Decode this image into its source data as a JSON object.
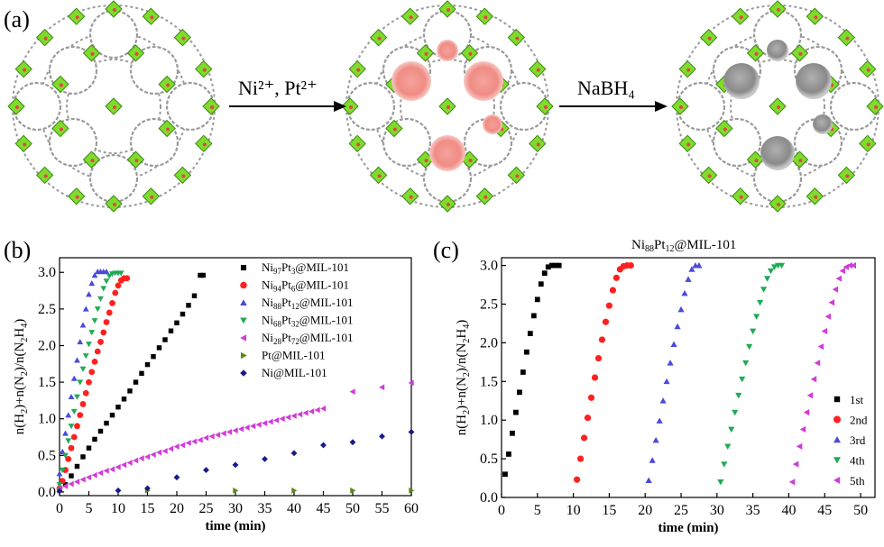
{
  "panel_a": {
    "label": "(a)",
    "step1_label": "Ni²⁺, Pt²⁺",
    "step2_label": "NaBH₄"
  },
  "colors": {
    "framework_green": "#7fdb2c",
    "framework_dark": "#3e8a14",
    "linker_gray": "#9a9a9a",
    "precursor_pink": "#f08c84",
    "nanoparticle_gray": "#8a8a8a",
    "black": "#000000",
    "red": "#ff2020",
    "blue": "#4a4adb",
    "green": "#1faa55",
    "magenta": "#d03cd8",
    "olive": "#5a8a1a",
    "navy": "#1a1a8a"
  },
  "chart_data": [
    {
      "id": "b",
      "type": "scatter",
      "panel_label": "(b)",
      "xlabel": "time (min)",
      "ylabel": "n(H2)+n(N2)/n(N2H4)",
      "xlim": [
        0,
        60
      ],
      "ylim": [
        -0.05,
        3.2
      ],
      "xticks": [
        0,
        5,
        10,
        15,
        20,
        25,
        30,
        35,
        40,
        45,
        50,
        55,
        60
      ],
      "yticks": [
        0.0,
        0.5,
        1.0,
        1.5,
        2.0,
        2.5,
        3.0
      ],
      "legend_position": "top-right",
      "series": [
        {
          "name": "Ni97Pt3@MIL-101",
          "label_base": "Ni",
          "sub1": "97",
          "mid": "Pt",
          "sub2": "3",
          "suffix": "@MIL-101",
          "marker": "square",
          "color": "#000000",
          "x": [
            0,
            1,
            2,
            3,
            4,
            5,
            6,
            7,
            8,
            9,
            10,
            11,
            12,
            13,
            14,
            15,
            16,
            17,
            18,
            19,
            20,
            21,
            22,
            23,
            24,
            24.5
          ],
          "y": [
            0.03,
            0.1,
            0.22,
            0.35,
            0.48,
            0.6,
            0.72,
            0.83,
            0.94,
            1.05,
            1.16,
            1.27,
            1.38,
            1.5,
            1.62,
            1.74,
            1.85,
            1.97,
            2.08,
            2.2,
            2.31,
            2.43,
            2.55,
            2.68,
            2.96,
            2.96
          ]
        },
        {
          "name": "Ni94Pt6@MIL-101",
          "label_base": "Ni",
          "sub1": "94",
          "mid": "Pt",
          "sub2": "6",
          "suffix": "@MIL-101",
          "marker": "circle",
          "color": "#ff2020",
          "x": [
            0,
            0.5,
            1,
            1.5,
            2,
            2.5,
            3,
            3.5,
            4,
            4.5,
            5,
            5.5,
            6,
            6.5,
            7,
            7.5,
            8,
            8.5,
            9,
            9.5,
            10,
            10.5,
            11,
            11.5
          ],
          "y": [
            0.05,
            0.15,
            0.3,
            0.45,
            0.6,
            0.75,
            0.9,
            1.05,
            1.2,
            1.35,
            1.5,
            1.64,
            1.78,
            1.92,
            2.05,
            2.18,
            2.32,
            2.45,
            2.58,
            2.72,
            2.82,
            2.89,
            2.92,
            2.92
          ]
        },
        {
          "name": "Ni88Pt12@MIL-101",
          "label_base": "Ni",
          "sub1": "88",
          "mid": "Pt",
          "sub2": "12",
          "suffix": "@MIL-101",
          "marker": "triangle-up",
          "color": "#4a4adb",
          "x": [
            0,
            0.5,
            1,
            1.5,
            2,
            2.5,
            3,
            3.5,
            4,
            4.5,
            5,
            5.5,
            6,
            6.5,
            7,
            7.5,
            8
          ],
          "y": [
            0.25,
            0.55,
            0.8,
            1.05,
            1.3,
            1.55,
            1.8,
            2.05,
            2.28,
            2.5,
            2.7,
            2.85,
            2.96,
            3.01,
            3.01,
            3.01,
            3.01
          ]
        },
        {
          "name": "Ni68Pt32@MIL-101",
          "label_base": "Ni",
          "sub1": "68",
          "mid": "Pt",
          "sub2": "32",
          "suffix": "@MIL-101",
          "marker": "triangle-down",
          "color": "#1faa55",
          "x": [
            0,
            0.5,
            1,
            1.5,
            2,
            2.5,
            3,
            3.5,
            4,
            4.5,
            5,
            5.5,
            6,
            6.5,
            7,
            7.5,
            8,
            8.5,
            9,
            9.5,
            10,
            10.5
          ],
          "y": [
            0.1,
            0.3,
            0.5,
            0.7,
            0.9,
            1.1,
            1.3,
            1.5,
            1.68,
            1.86,
            2.02,
            2.18,
            2.34,
            2.5,
            2.64,
            2.78,
            2.88,
            2.95,
            2.98,
            2.99,
            2.99,
            2.99
          ]
        },
        {
          "name": "Ni28Pt72@MIL-101",
          "label_base": "Ni",
          "sub1": "28",
          "mid": "Pt",
          "sub2": "72",
          "suffix": "@MIL-101",
          "marker": "triangle-left",
          "color": "#d03cd8",
          "x": [
            0,
            1,
            2,
            3,
            4,
            5,
            6,
            7,
            8,
            9,
            10,
            11,
            12,
            13,
            14,
            15,
            16,
            17,
            18,
            19,
            20,
            21,
            22,
            23,
            24,
            25,
            26,
            27,
            28,
            29,
            30,
            31,
            32,
            33,
            34,
            35,
            36,
            37,
            38,
            39,
            40,
            41,
            42,
            43,
            44,
            45,
            50,
            55,
            60
          ],
          "y": [
            0.05,
            0.08,
            0.11,
            0.14,
            0.17,
            0.2,
            0.23,
            0.26,
            0.29,
            0.31,
            0.34,
            0.37,
            0.4,
            0.43,
            0.46,
            0.48,
            0.51,
            0.54,
            0.56,
            0.59,
            0.62,
            0.64,
            0.67,
            0.69,
            0.71,
            0.74,
            0.76,
            0.78,
            0.8,
            0.82,
            0.84,
            0.86,
            0.88,
            0.9,
            0.92,
            0.94,
            0.96,
            0.98,
            1.0,
            1.02,
            1.04,
            1.06,
            1.08,
            1.1,
            1.12,
            1.14,
            1.37,
            1.43,
            1.49
          ]
        },
        {
          "name": "Pt@MIL-101",
          "label_base": "Pt",
          "sub1": "",
          "mid": "",
          "sub2": "",
          "suffix": "@MIL-101",
          "marker": "triangle-right",
          "color": "#5a8a1a",
          "x": [
            0,
            15,
            30,
            40,
            50,
            60
          ],
          "y": [
            0.02,
            0.02,
            0.02,
            0.02,
            0.02,
            0.02
          ]
        },
        {
          "name": "Ni@MIL-101",
          "label_base": "Ni",
          "sub1": "",
          "mid": "",
          "sub2": "",
          "suffix": "@MIL-101",
          "marker": "diamond",
          "color": "#1a1a8a",
          "x": [
            0,
            10,
            15,
            20,
            25,
            30,
            35,
            40,
            45,
            50,
            55,
            60
          ],
          "y": [
            0.01,
            0.02,
            0.05,
            0.2,
            0.3,
            0.37,
            0.45,
            0.53,
            0.64,
            0.68,
            0.76,
            0.82
          ]
        }
      ]
    },
    {
      "id": "c",
      "type": "scatter",
      "panel_label": "(c)",
      "title": "Ni88Pt12@MIL-101",
      "title_parts": {
        "a": "Ni",
        "s1": "88",
        "b": "Pt",
        "s2": "12",
        "c": "@MIL-101"
      },
      "xlabel": "time (min)",
      "ylabel": "n(H2)+n(N2)/n(N2H4)",
      "xlim": [
        0,
        52
      ],
      "ylim": [
        0,
        3.1
      ],
      "xticks": [
        0,
        5,
        10,
        15,
        20,
        25,
        30,
        35,
        40,
        45,
        50
      ],
      "yticks": [
        0.0,
        0.5,
        1.0,
        1.5,
        2.0,
        2.5,
        3.0
      ],
      "legend_position": "bottom-right",
      "series": [
        {
          "name": "1st",
          "marker": "square",
          "color": "#000000",
          "x": [
            0.5,
            1,
            1.5,
            2,
            2.5,
            3,
            3.5,
            4,
            4.5,
            5,
            5.5,
            6,
            6.5,
            7,
            7.5,
            8
          ],
          "y": [
            0.3,
            0.56,
            0.83,
            1.1,
            1.36,
            1.62,
            1.88,
            2.12,
            2.35,
            2.56,
            2.76,
            2.9,
            2.98,
            3.0,
            3.0,
            3.0
          ]
        },
        {
          "name": "2nd",
          "marker": "circle",
          "color": "#ff2020",
          "x": [
            10.5,
            11,
            11.5,
            12,
            12.5,
            13,
            13.5,
            14,
            14.5,
            15,
            15.5,
            16,
            16.5,
            17,
            17.5,
            18
          ],
          "y": [
            0.23,
            0.5,
            0.77,
            1.03,
            1.29,
            1.55,
            1.8,
            2.04,
            2.27,
            2.48,
            2.68,
            2.84,
            2.95,
            2.99,
            3.0,
            3.0
          ]
        },
        {
          "name": "3rd",
          "marker": "triangle-up",
          "color": "#4a4adb",
          "x": [
            20.5,
            21,
            21.5,
            22,
            22.5,
            23,
            23.5,
            24,
            24.5,
            25,
            25.5,
            26,
            26.5,
            27,
            27.5
          ],
          "y": [
            0.22,
            0.48,
            0.74,
            0.99,
            1.25,
            1.5,
            1.74,
            1.98,
            2.21,
            2.43,
            2.64,
            2.82,
            2.95,
            3.0,
            3.0
          ]
        },
        {
          "name": "4th",
          "marker": "triangle-down",
          "color": "#1faa55",
          "x": [
            30.5,
            31,
            31.5,
            32,
            32.5,
            33,
            33.5,
            34,
            34.5,
            35,
            35.5,
            36,
            36.5,
            37,
            37.5,
            38,
            38.5,
            39
          ],
          "y": [
            0.2,
            0.43,
            0.66,
            0.88,
            1.1,
            1.32,
            1.53,
            1.74,
            1.95,
            2.15,
            2.34,
            2.52,
            2.69,
            2.83,
            2.93,
            2.98,
            3.0,
            3.0
          ]
        },
        {
          "name": "5th",
          "marker": "triangle-left",
          "color": "#d03cd8",
          "x": [
            40.5,
            41,
            41.5,
            42,
            42.5,
            43,
            43.5,
            44,
            44.5,
            45,
            45.5,
            46,
            46.5,
            47,
            47.5,
            48,
            48.5,
            49
          ],
          "y": [
            0.2,
            0.43,
            0.66,
            0.88,
            1.1,
            1.32,
            1.53,
            1.74,
            1.95,
            2.15,
            2.34,
            2.52,
            2.69,
            2.83,
            2.93,
            2.98,
            3.0,
            3.0
          ]
        }
      ]
    }
  ]
}
